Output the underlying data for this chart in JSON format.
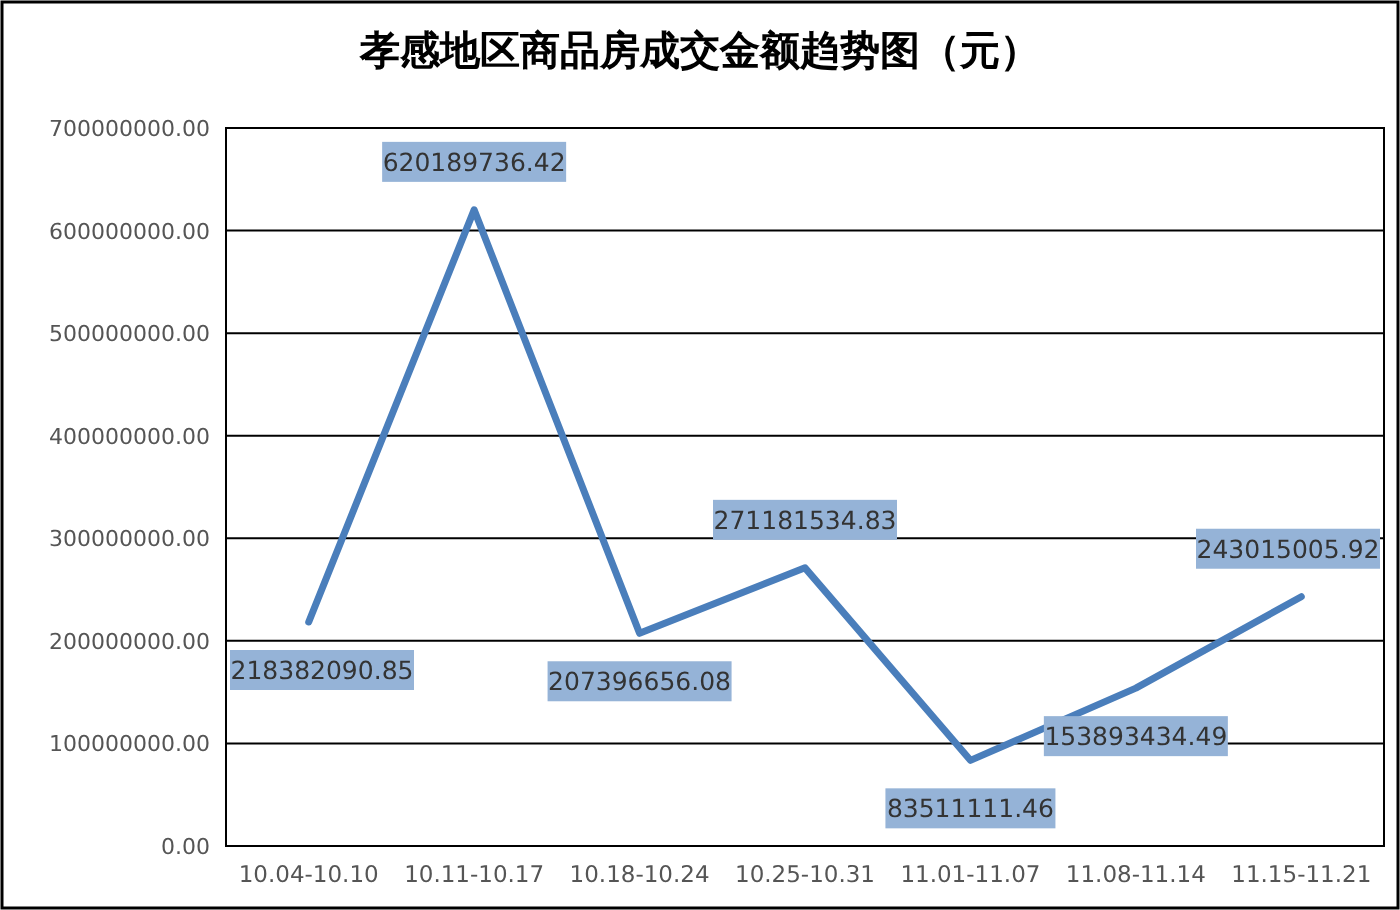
{
  "chart_data": {
    "type": "line",
    "title": "孝感地区商品房成交金额趋势图（元）",
    "categories": [
      "10.04-10.10",
      "10.11-10.17",
      "10.18-10.24",
      "10.25-10.31",
      "11.01-11.07",
      "11.08-11.14",
      "11.15-11.21"
    ],
    "series": [
      {
        "color": "#4a7ebb",
        "values": [
          218382090.85,
          620189736.42,
          207396656.08,
          271181534.83,
          83511111.46,
          153893434.49,
          243015005.92
        ]
      }
    ],
    "ylim": [
      0,
      700000000
    ],
    "yticks": [
      {
        "value": 0,
        "label": "0.00"
      },
      {
        "value": 100000000,
        "label": "100000000.00"
      },
      {
        "value": 200000000,
        "label": "200000000.00"
      },
      {
        "value": 300000000,
        "label": "300000000.00"
      },
      {
        "value": 400000000,
        "label": "400000000.00"
      },
      {
        "value": 500000000,
        "label": "500000000.00"
      },
      {
        "value": 600000000,
        "label": "600000000.00"
      },
      {
        "value": 700000000,
        "label": "700000000.00"
      }
    ],
    "grid": "y",
    "data_labels": true,
    "marker": "none",
    "line_style": "solid"
  }
}
